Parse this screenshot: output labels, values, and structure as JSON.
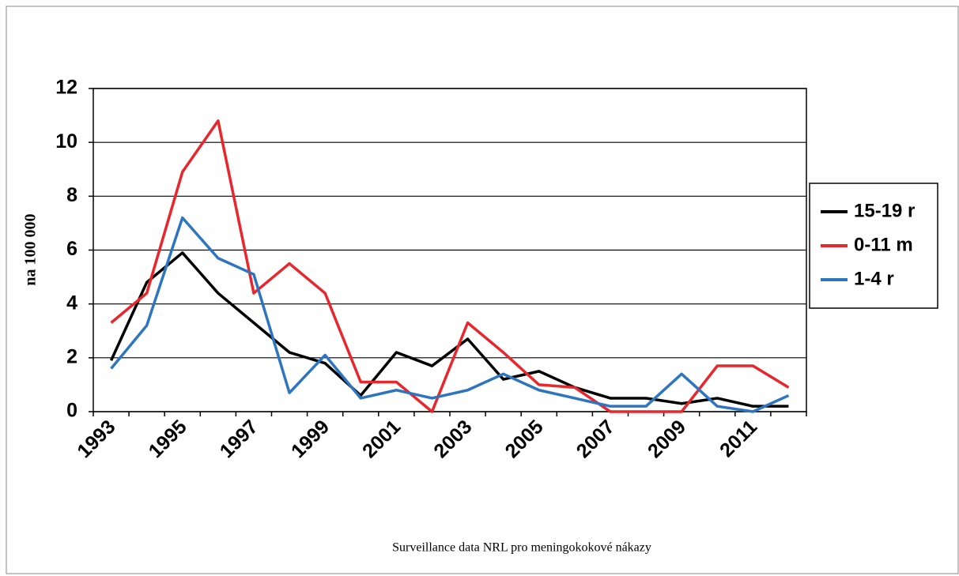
{
  "chart_data": {
    "type": "line",
    "y_label": "na 100 000",
    "footnote": "Surveillance data NRL pro meningokokové nákazy",
    "categories": [
      "1993",
      null,
      "1995",
      null,
      "1997",
      null,
      "1999",
      null,
      "2001",
      null,
      "2003",
      null,
      "2005",
      null,
      "2007",
      null,
      "2009",
      null,
      "2011",
      null
    ],
    "series": [
      {
        "name": "15-19 r",
        "color": "#000000",
        "values": [
          1.9,
          4.8,
          5.9,
          4.4,
          3.3,
          2.2,
          1.8,
          0.6,
          2.2,
          1.7,
          2.7,
          1.2,
          1.5,
          0.9,
          0.5,
          0.5,
          0.3,
          0.5,
          0.2,
          0.2
        ]
      },
      {
        "name": "0-11 m",
        "color": "#e8262b",
        "values": [
          3.3,
          4.4,
          8.9,
          10.8,
          4.4,
          5.5,
          4.4,
          1.1,
          1.1,
          0.0,
          3.3,
          2.2,
          1.0,
          0.9,
          0.0,
          0.0,
          0.0,
          1.7,
          1.7,
          0.9
        ]
      },
      {
        "name": "1-4 r",
        "color": "#2e75c0",
        "values": [
          1.6,
          3.2,
          7.2,
          5.7,
          5.1,
          0.7,
          2.1,
          0.5,
          0.8,
          0.5,
          0.8,
          1.4,
          0.8,
          0.5,
          0.2,
          0.2,
          1.4,
          0.2,
          0.0,
          0.6
        ]
      }
    ],
    "ylim": [
      0,
      12
    ],
    "yticks": [
      0,
      2,
      4,
      6,
      8,
      10,
      12
    ],
    "grid": true,
    "legend": "right"
  }
}
